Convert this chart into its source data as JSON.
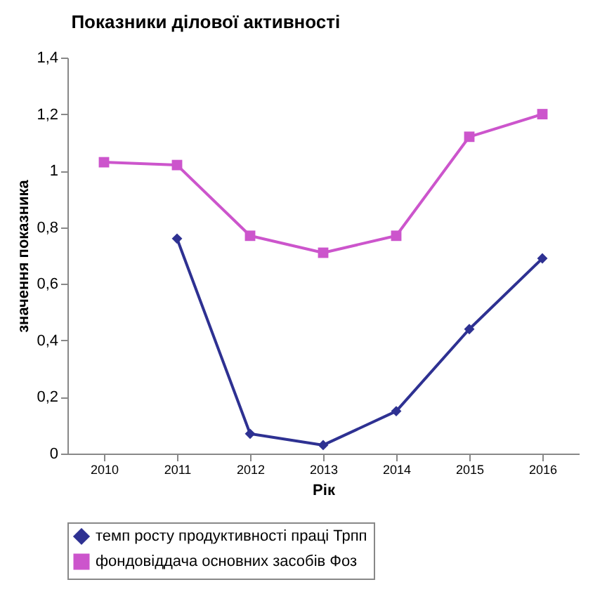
{
  "chart_data": {
    "type": "line",
    "title": "Показники ділової активності",
    "xlabel": "Рік",
    "ylabel": "значення показника",
    "categories": [
      "2010",
      "2011",
      "2012",
      "2013",
      "2014",
      "2015",
      "2016"
    ],
    "series": [
      {
        "name": "темп росту продуктивності праці Трпп",
        "color": "#2e3192",
        "marker": "diamond",
        "values": [
          null,
          0.76,
          0.07,
          0.03,
          0.15,
          0.44,
          0.69
        ]
      },
      {
        "name": "фондовіддача основних засобів Фоз",
        "color": "#cc55cc",
        "marker": "square",
        "values": [
          1.03,
          1.02,
          0.77,
          0.71,
          0.77,
          1.12,
          1.2
        ]
      }
    ],
    "ylim": [
      0,
      1.4
    ],
    "yticks": [
      0,
      {
        "value": 0.2,
        "label": "0,2"
      },
      {
        "value": 0.4,
        "label": "0,4"
      },
      {
        "value": 0.6,
        "label": "0,6"
      },
      {
        "value": 0.8,
        "label": "0,8"
      },
      1,
      {
        "value": 1.2,
        "label": "1,2"
      },
      {
        "value": 1.4,
        "label": "1,4"
      }
    ],
    "grid": false,
    "legend": "bottom"
  }
}
